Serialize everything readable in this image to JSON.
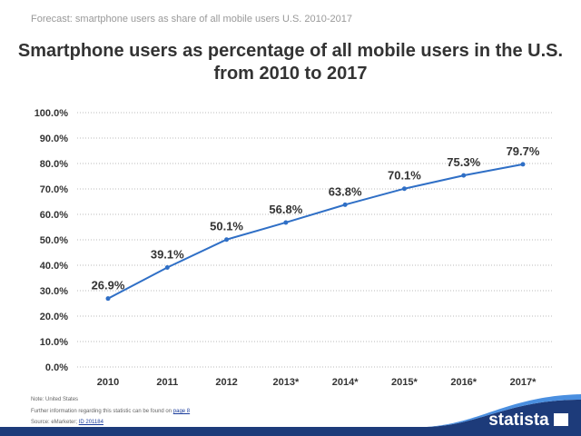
{
  "header": {
    "subtitle": "Forecast: smartphone users as share of all mobile users U.S. 2010-2017"
  },
  "chart_data": {
    "type": "line",
    "title": "Smartphone users as percentage of all mobile users in the U.S. from 2010 to 2017",
    "xlabel": "",
    "ylabel": "",
    "categories": [
      "2010",
      "2011",
      "2012",
      "2013*",
      "2014*",
      "2015*",
      "2016*",
      "2017*"
    ],
    "values": [
      26.9,
      39.1,
      50.1,
      56.8,
      63.8,
      70.1,
      75.3,
      79.7
    ],
    "data_labels": [
      "26.9%",
      "39.1%",
      "50.1%",
      "56.8%",
      "63.8%",
      "70.1%",
      "75.3%",
      "79.7%"
    ],
    "ylim": [
      0,
      100
    ],
    "yticks": [
      "0.0%",
      "10.0%",
      "20.0%",
      "30.0%",
      "40.0%",
      "50.0%",
      "60.0%",
      "70.0%",
      "80.0%",
      "90.0%",
      "100.0%"
    ],
    "grid": true,
    "color": "#2f6fc6"
  },
  "footer": {
    "note": "Note: United States",
    "info": "Further information regarding this statistic can be found on",
    "info_link": "page 8",
    "source": "Source: eMarketer;",
    "source_link": "ID 201184",
    "logo": "statista"
  }
}
